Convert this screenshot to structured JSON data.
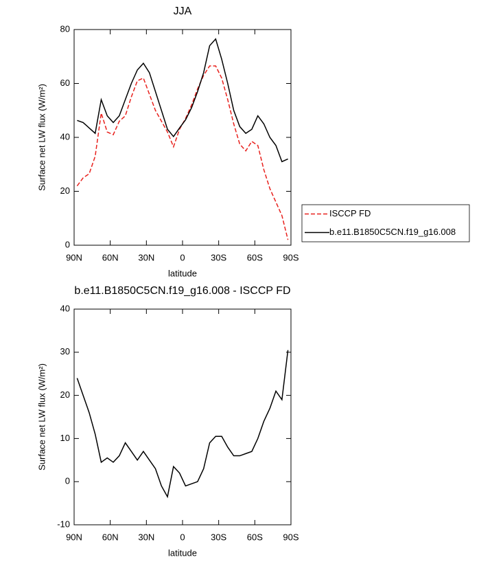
{
  "chart_data": [
    {
      "type": "line",
      "title": "JJA",
      "x_label": "latitude",
      "y_label": "Surface net LW flux (W/m²)",
      "x": [
        87.5,
        82.5,
        77.5,
        72.5,
        67.5,
        62.5,
        57.5,
        52.5,
        47.5,
        42.5,
        37.5,
        32.5,
        27.5,
        22.5,
        17.5,
        12.5,
        7.5,
        2.5,
        -2.5,
        -7.5,
        -12.5,
        -17.5,
        -22.5,
        -27.5,
        -32.5,
        -37.5,
        -42.5,
        -47.5,
        -52.5,
        -57.5,
        -62.5,
        -67.5,
        -72.5,
        -77.5,
        -82.5,
        -87.5
      ],
      "series": [
        {
          "name": "ISCCP FD",
          "color": "#e8201c",
          "line_style": "dashed",
          "values": [
            22,
            25,
            26.5,
            33,
            49,
            42,
            41,
            46,
            48,
            55,
            61,
            62,
            56,
            50,
            46,
            42,
            36.5,
            43,
            47,
            52,
            58,
            63,
            66.5,
            66.5,
            62,
            54,
            45,
            37.5,
            35,
            38.5,
            37,
            28,
            21,
            16,
            11,
            2
          ]
        },
        {
          "name": "b.e11.B1850C5CN.f19_g16.008",
          "color": "#000000",
          "line_style": "solid",
          "values": [
            46.3,
            45.5,
            43.5,
            41.5,
            54,
            48,
            45.5,
            48,
            54,
            60,
            65,
            67.5,
            64,
            57,
            50,
            43,
            40.3,
            43.5,
            46.5,
            51,
            57,
            64,
            74,
            76.5,
            69,
            60,
            50,
            44,
            41.5,
            43,
            48,
            45,
            40,
            37,
            31,
            32
          ]
        }
      ],
      "xlim": [
        90,
        -90
      ],
      "xticks": [
        {
          "value": 90,
          "label": "90N"
        },
        {
          "value": 60,
          "label": "60N"
        },
        {
          "value": 30,
          "label": "30N"
        },
        0,
        {
          "value": -30,
          "label": "30S"
        },
        {
          "value": -60,
          "label": "60S"
        },
        {
          "value": -90,
          "label": "90S"
        }
      ],
      "ylim": [
        0,
        80
      ],
      "yticks": [
        0,
        20,
        40,
        60,
        80
      ],
      "legend": "right"
    },
    {
      "type": "line",
      "title": "b.e11.B1850C5CN.f19_g16.008 - ISCCP FD",
      "x_label": "latitude",
      "y_label": "Surface net LW flux (W/m²)",
      "x": [
        87.5,
        82.5,
        77.5,
        72.5,
        67.5,
        62.5,
        57.5,
        52.5,
        47.5,
        42.5,
        37.5,
        32.5,
        27.5,
        22.5,
        17.5,
        12.5,
        7.5,
        2.5,
        -2.5,
        -7.5,
        -12.5,
        -17.5,
        -22.5,
        -27.5,
        -32.5,
        -37.5,
        -42.5,
        -47.5,
        -52.5,
        -57.5,
        -62.5,
        -67.5,
        -72.5,
        -77.5,
        -82.5,
        -87.5
      ],
      "values": [
        24,
        20,
        16,
        11,
        4.5,
        5.5,
        4.5,
        6,
        9,
        7,
        5,
        7,
        5,
        3,
        -1,
        -3.5,
        3.5,
        2,
        -1,
        -0.5,
        0,
        3,
        9,
        10.5,
        10.5,
        8,
        6,
        6,
        6.5,
        7,
        10,
        14,
        17,
        21,
        19,
        30.5
      ],
      "color": "#000000",
      "xlim": [
        90,
        -90
      ],
      "xticks": [
        {
          "value": 90,
          "label": "90N"
        },
        {
          "value": 60,
          "label": "60N"
        },
        {
          "value": 30,
          "label": "30N"
        },
        0,
        {
          "value": -30,
          "label": "30S"
        },
        {
          "value": -60,
          "label": "60S"
        },
        {
          "value": -90,
          "label": "90S"
        }
      ],
      "ylim": [
        -10,
        40
      ],
      "yticks": [
        -10,
        0,
        10,
        20,
        30,
        40
      ]
    }
  ]
}
